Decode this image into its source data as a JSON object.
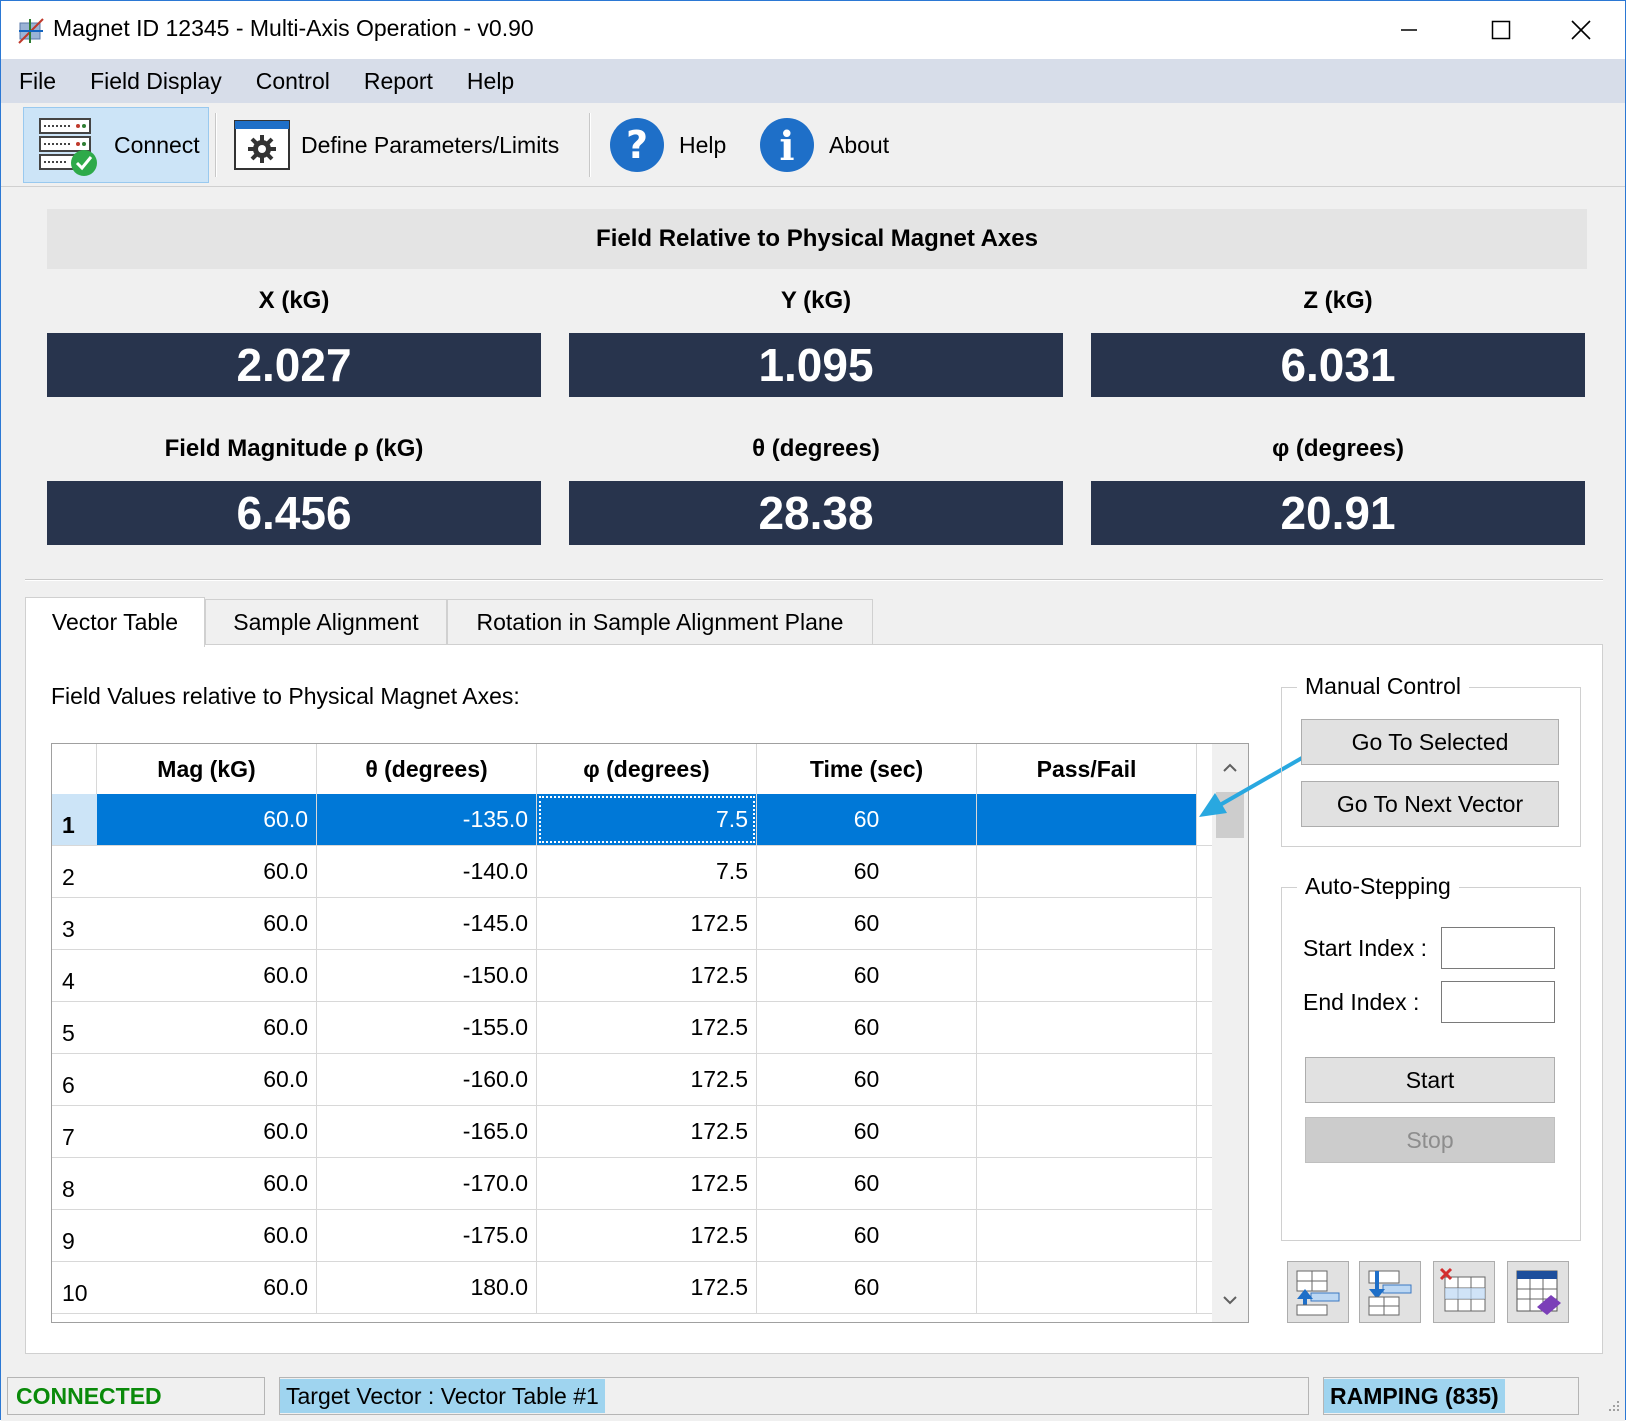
{
  "window": {
    "title": "Magnet ID 12345 - Multi-Axis Operation - v0.90",
    "controls": {
      "minimize": "minimize",
      "maximize": "maximize",
      "close": "close"
    }
  },
  "menu": [
    "File",
    "Field Display",
    "Control",
    "Report",
    "Help"
  ],
  "toolbar": {
    "connect": "Connect",
    "define": "Define Parameters/Limits",
    "help": "Help",
    "about": "About"
  },
  "field": {
    "header": "Field Relative to Physical Magnet Axes",
    "x_label": "X (kG)",
    "x_value": "2.027",
    "y_label": "Y (kG)",
    "y_value": "1.095",
    "z_label": "Z (kG)",
    "z_value": "6.031",
    "mag_label": "Field Magnitude ρ (kG)",
    "mag_value": "6.456",
    "theta_label": "θ (degrees)",
    "theta_value": "28.38",
    "phi_label": "φ (degrees)",
    "phi_value": "20.91"
  },
  "tabs": [
    "Vector Table",
    "Sample Alignment",
    "Rotation in Sample Alignment Plane"
  ],
  "vector_table": {
    "caption": "Field Values relative to Physical Magnet Axes:",
    "columns": [
      "Mag (kG)",
      "θ (degrees)",
      "φ (degrees)",
      "Time (sec)",
      "Pass/Fail"
    ],
    "selected_row": 1,
    "rows": [
      {
        "index": "1",
        "mag": "60.0",
        "theta": "-135.0",
        "phi": "7.5",
        "time": "60",
        "pass": ""
      },
      {
        "index": "2",
        "mag": "60.0",
        "theta": "-140.0",
        "phi": "7.5",
        "time": "60",
        "pass": ""
      },
      {
        "index": "3",
        "mag": "60.0",
        "theta": "-145.0",
        "phi": "172.5",
        "time": "60",
        "pass": ""
      },
      {
        "index": "4",
        "mag": "60.0",
        "theta": "-150.0",
        "phi": "172.5",
        "time": "60",
        "pass": ""
      },
      {
        "index": "5",
        "mag": "60.0",
        "theta": "-155.0",
        "phi": "172.5",
        "time": "60",
        "pass": ""
      },
      {
        "index": "6",
        "mag": "60.0",
        "theta": "-160.0",
        "phi": "172.5",
        "time": "60",
        "pass": ""
      },
      {
        "index": "7",
        "mag": "60.0",
        "theta": "-165.0",
        "phi": "172.5",
        "time": "60",
        "pass": ""
      },
      {
        "index": "8",
        "mag": "60.0",
        "theta": "-170.0",
        "phi": "172.5",
        "time": "60",
        "pass": ""
      },
      {
        "index": "9",
        "mag": "60.0",
        "theta": "-175.0",
        "phi": "172.5",
        "time": "60",
        "pass": ""
      },
      {
        "index": "10",
        "mag": "60.0",
        "theta": "180.0",
        "phi": "172.5",
        "time": "60",
        "pass": ""
      }
    ]
  },
  "manual_control": {
    "title": "Manual Control",
    "go_selected": "Go To Selected",
    "go_next": "Go To Next Vector"
  },
  "auto_stepping": {
    "title": "Auto-Stepping",
    "start_index_label": "Start Index :",
    "end_index_label": "End Index :",
    "start_index_value": "",
    "end_index_value": "",
    "start": "Start",
    "stop": "Stop"
  },
  "icons": {
    "insert_row_above": "insert-row-above-icon",
    "insert_row_below": "insert-row-below-icon",
    "delete_row": "delete-row-icon",
    "clear_table": "clear-table-icon"
  },
  "status": {
    "connection": "CONNECTED",
    "target": "Target Vector : Vector Table #1",
    "state": "RAMPING (835)"
  },
  "colors": {
    "accent": "#0078d7",
    "value_panel": "#28344d",
    "connected": "#0a8a0a",
    "status_highlight": "#9fd4ef"
  }
}
